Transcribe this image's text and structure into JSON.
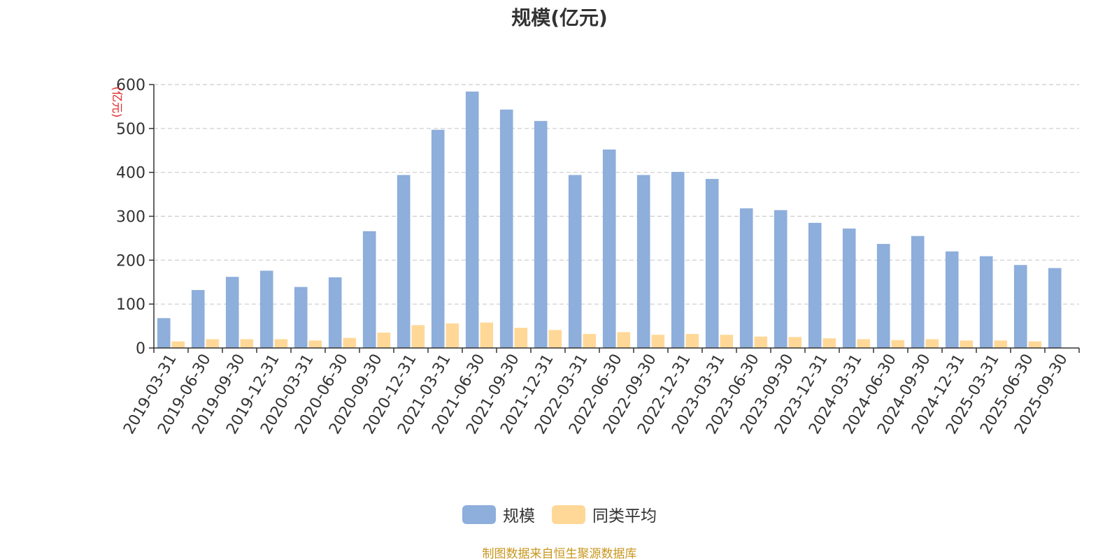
{
  "chart_data": {
    "type": "bar",
    "title": "规模(亿元)",
    "ylabel": "(亿元)",
    "xlabel": "",
    "ylim": [
      0,
      600
    ],
    "yticks": [
      0,
      100,
      200,
      300,
      400,
      500,
      600
    ],
    "grid": true,
    "legend_position": "bottom-center",
    "categories": [
      "2019-03-31",
      "2019-06-30",
      "2019-09-30",
      "2019-12-31",
      "2020-03-31",
      "2020-06-30",
      "2020-09-30",
      "2020-12-31",
      "2021-03-31",
      "2021-06-30",
      "2021-09-30",
      "2021-12-31",
      "2022-03-31",
      "2022-06-30",
      "2022-09-30",
      "2022-12-31",
      "2023-03-31",
      "2023-06-30",
      "2023-09-30",
      "2023-12-31",
      "2024-03-31",
      "2024-06-30",
      "2024-09-30",
      "2024-12-31",
      "2025-03-31",
      "2025-06-30",
      "2025-09-30"
    ],
    "series": [
      {
        "name": "规模",
        "color": "#8eaedb",
        "values": [
          68,
          132,
          162,
          176,
          139,
          161,
          266,
          394,
          497,
          584,
          543,
          517,
          394,
          452,
          394,
          401,
          385,
          318,
          314,
          285,
          272,
          237,
          255,
          220,
          209,
          189,
          182
        ]
      },
      {
        "name": "同类平均",
        "color": "#ffd898",
        "values": [
          15,
          20,
          20,
          20,
          17,
          23,
          35,
          52,
          56,
          58,
          46,
          41,
          32,
          36,
          30,
          32,
          30,
          26,
          25,
          22,
          20,
          18,
          20,
          17,
          17,
          15,
          0
        ]
      }
    ]
  },
  "footer": "制图数据来自恒生聚源数据库"
}
